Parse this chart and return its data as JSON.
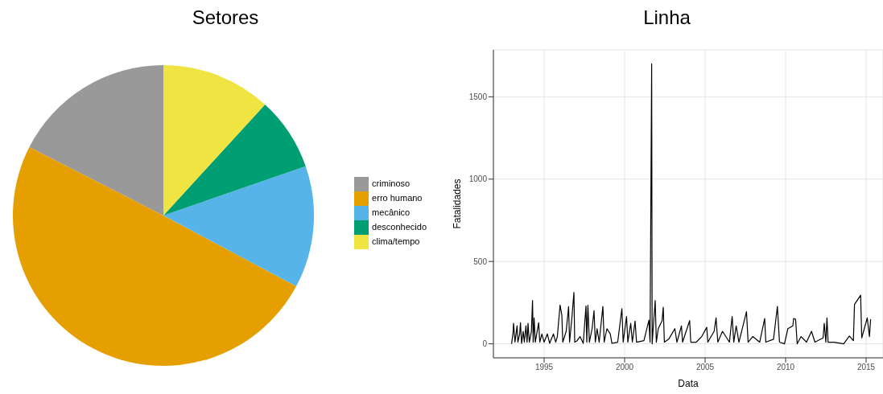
{
  "chart_data": [
    {
      "type": "pie",
      "title": "Setores",
      "categories": [
        "criminoso",
        "erro humano",
        "mecânico",
        "desconhecido",
        "clima/tempo"
      ],
      "values": [
        17.5,
        49.7,
        13.1,
        7.9,
        11.8
      ],
      "colors": [
        "#999999",
        "#e69f00",
        "#56b4e9",
        "#009e73",
        "#f0e442"
      ],
      "legend": "right"
    },
    {
      "type": "line",
      "title": "Linha",
      "xlabel": "Data",
      "ylabel": "Fatalidades",
      "xlim": [
        1991.85,
        2016.05
      ],
      "xticks": [
        1995,
        2000,
        2005,
        2010,
        2015
      ],
      "ylim": [
        -85,
        1785
      ],
      "yticks": [
        0,
        500,
        1000,
        1500
      ],
      "grid": true,
      "series": [
        {
          "color": "#000000",
          "x": [
            1992.98,
            1993.07,
            1993.1,
            1993.19,
            1993.32,
            1993.37,
            1993.48,
            1993.53,
            1993.6,
            1993.7,
            1993.77,
            1993.87,
            1993.94,
            1994.0,
            1994.08,
            1994.21,
            1994.28,
            1994.32,
            1994.38,
            1994.45,
            1994.66,
            1994.73,
            1994.86,
            1995.0,
            1995.2,
            1995.34,
            1995.58,
            1995.72,
            1995.82,
            1995.99,
            1996.1,
            1996.16,
            1996.37,
            1996.52,
            1996.58,
            1996.71,
            1996.85,
            1996.9,
            1997.05,
            1997.23,
            1997.43,
            1997.6,
            1997.65,
            1997.72,
            1997.81,
            1997.98,
            1998.1,
            1998.18,
            1998.29,
            1998.42,
            1998.65,
            1998.73,
            1998.9,
            1999.11,
            1999.21,
            1999.57,
            1999.83,
            1999.91,
            2000.12,
            2000.2,
            2000.38,
            2000.48,
            2000.65,
            2000.74,
            2001.2,
            2001.51,
            2001.58,
            2001.68,
            2001.71,
            2001.81,
            2001.9,
            2001.97,
            2002.09,
            2002.33,
            2002.4,
            2002.47,
            2002.74,
            2003.12,
            2003.25,
            2003.53,
            2003.6,
            2004.04,
            2004.11,
            2004.45,
            2004.79,
            2005.1,
            2005.17,
            2005.56,
            2005.68,
            2005.79,
            2006.08,
            2006.51,
            2006.68,
            2006.78,
            2006.93,
            2007.1,
            2007.57,
            2007.67,
            2007.96,
            2008.39,
            2008.7,
            2008.77,
            2009.25,
            2009.49,
            2009.62,
            2009.93,
            2010.14,
            2010.45,
            2010.5,
            2010.62,
            2010.72,
            2010.96,
            2011.3,
            2011.61,
            2011.82,
            2012.33,
            2012.4,
            2012.5,
            2012.57,
            2012.64,
            2013.01,
            2013.61,
            2013.96,
            2014.21,
            2014.28,
            2014.66,
            2014.73,
            2015.07,
            2015.21,
            2015.28
          ],
          "values": [
            0,
            68,
            125,
            10,
            110,
            10,
            60,
            128,
            3,
            76,
            10,
            110,
            10,
            125,
            10,
            76,
            263,
            10,
            157,
            10,
            128,
            10,
            60,
            10,
            60,
            3,
            60,
            10,
            44,
            235,
            174,
            10,
            76,
            226,
            10,
            141,
            312,
            10,
            19,
            44,
            3,
            230,
            10,
            234,
            10,
            92,
            201,
            10,
            92,
            10,
            227,
            10,
            92,
            60,
            3,
            10,
            214,
            10,
            166,
            10,
            125,
            10,
            138,
            10,
            19,
            144,
            10,
            1700,
            0,
            141,
            263,
            10,
            92,
            141,
            222,
            10,
            28,
            92,
            10,
            109,
            10,
            141,
            10,
            10,
            44,
            100,
            10,
            76,
            157,
            10,
            76,
            10,
            166,
            10,
            109,
            10,
            195,
            10,
            44,
            10,
            154,
            10,
            28,
            227,
            10,
            0,
            92,
            109,
            154,
            149,
            0,
            44,
            10,
            76,
            10,
            36,
            125,
            10,
            157,
            10,
            10,
            0,
            47,
            19,
            239,
            295,
            36,
            157,
            44,
            149
          ]
        }
      ]
    }
  ]
}
